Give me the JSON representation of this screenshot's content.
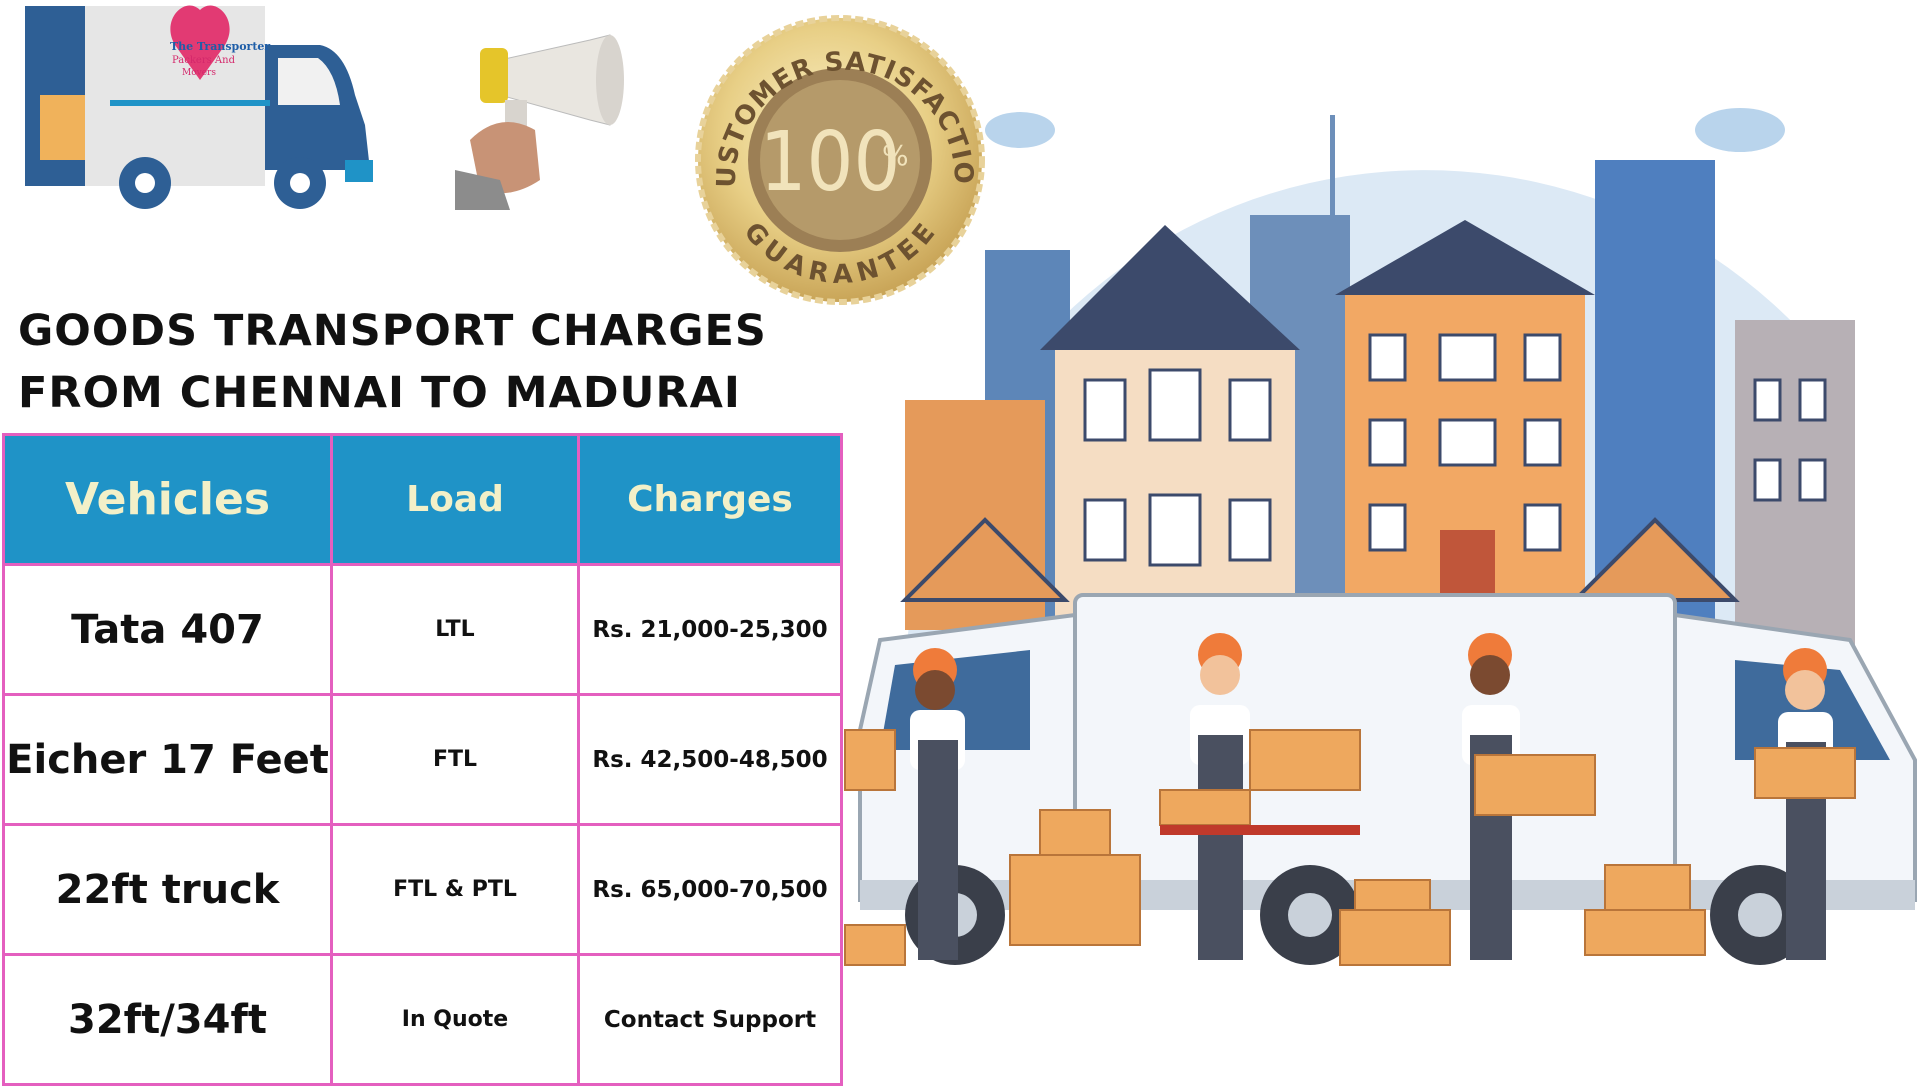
{
  "logo": {
    "lines": [
      "The Transporter",
      "Packers And",
      "Movers"
    ]
  },
  "badge": {
    "top": "CUSTOMER SATISFACTION",
    "center": "100",
    "percent": "%",
    "bottom": "GUARANTEE"
  },
  "heading": {
    "lines": [
      "GOODS TRANSPORT CHARGES",
      "FROM CHENNAI TO MADURAI"
    ]
  },
  "table": {
    "header": [
      "Vehicles",
      "Load",
      "Charges"
    ],
    "rows": [
      [
        "Tata 407",
        "LTL",
        "Rs. 21,000-25,300"
      ],
      [
        "Eicher 17 Feet",
        "FTL",
        "Rs. 42,500-48,500"
      ],
      [
        "22ft truck",
        "FTL & PTL",
        "Rs. 65,000-70,500"
      ],
      [
        "32ft/34ft",
        "In Quote",
        "Contact Support"
      ]
    ]
  }
}
